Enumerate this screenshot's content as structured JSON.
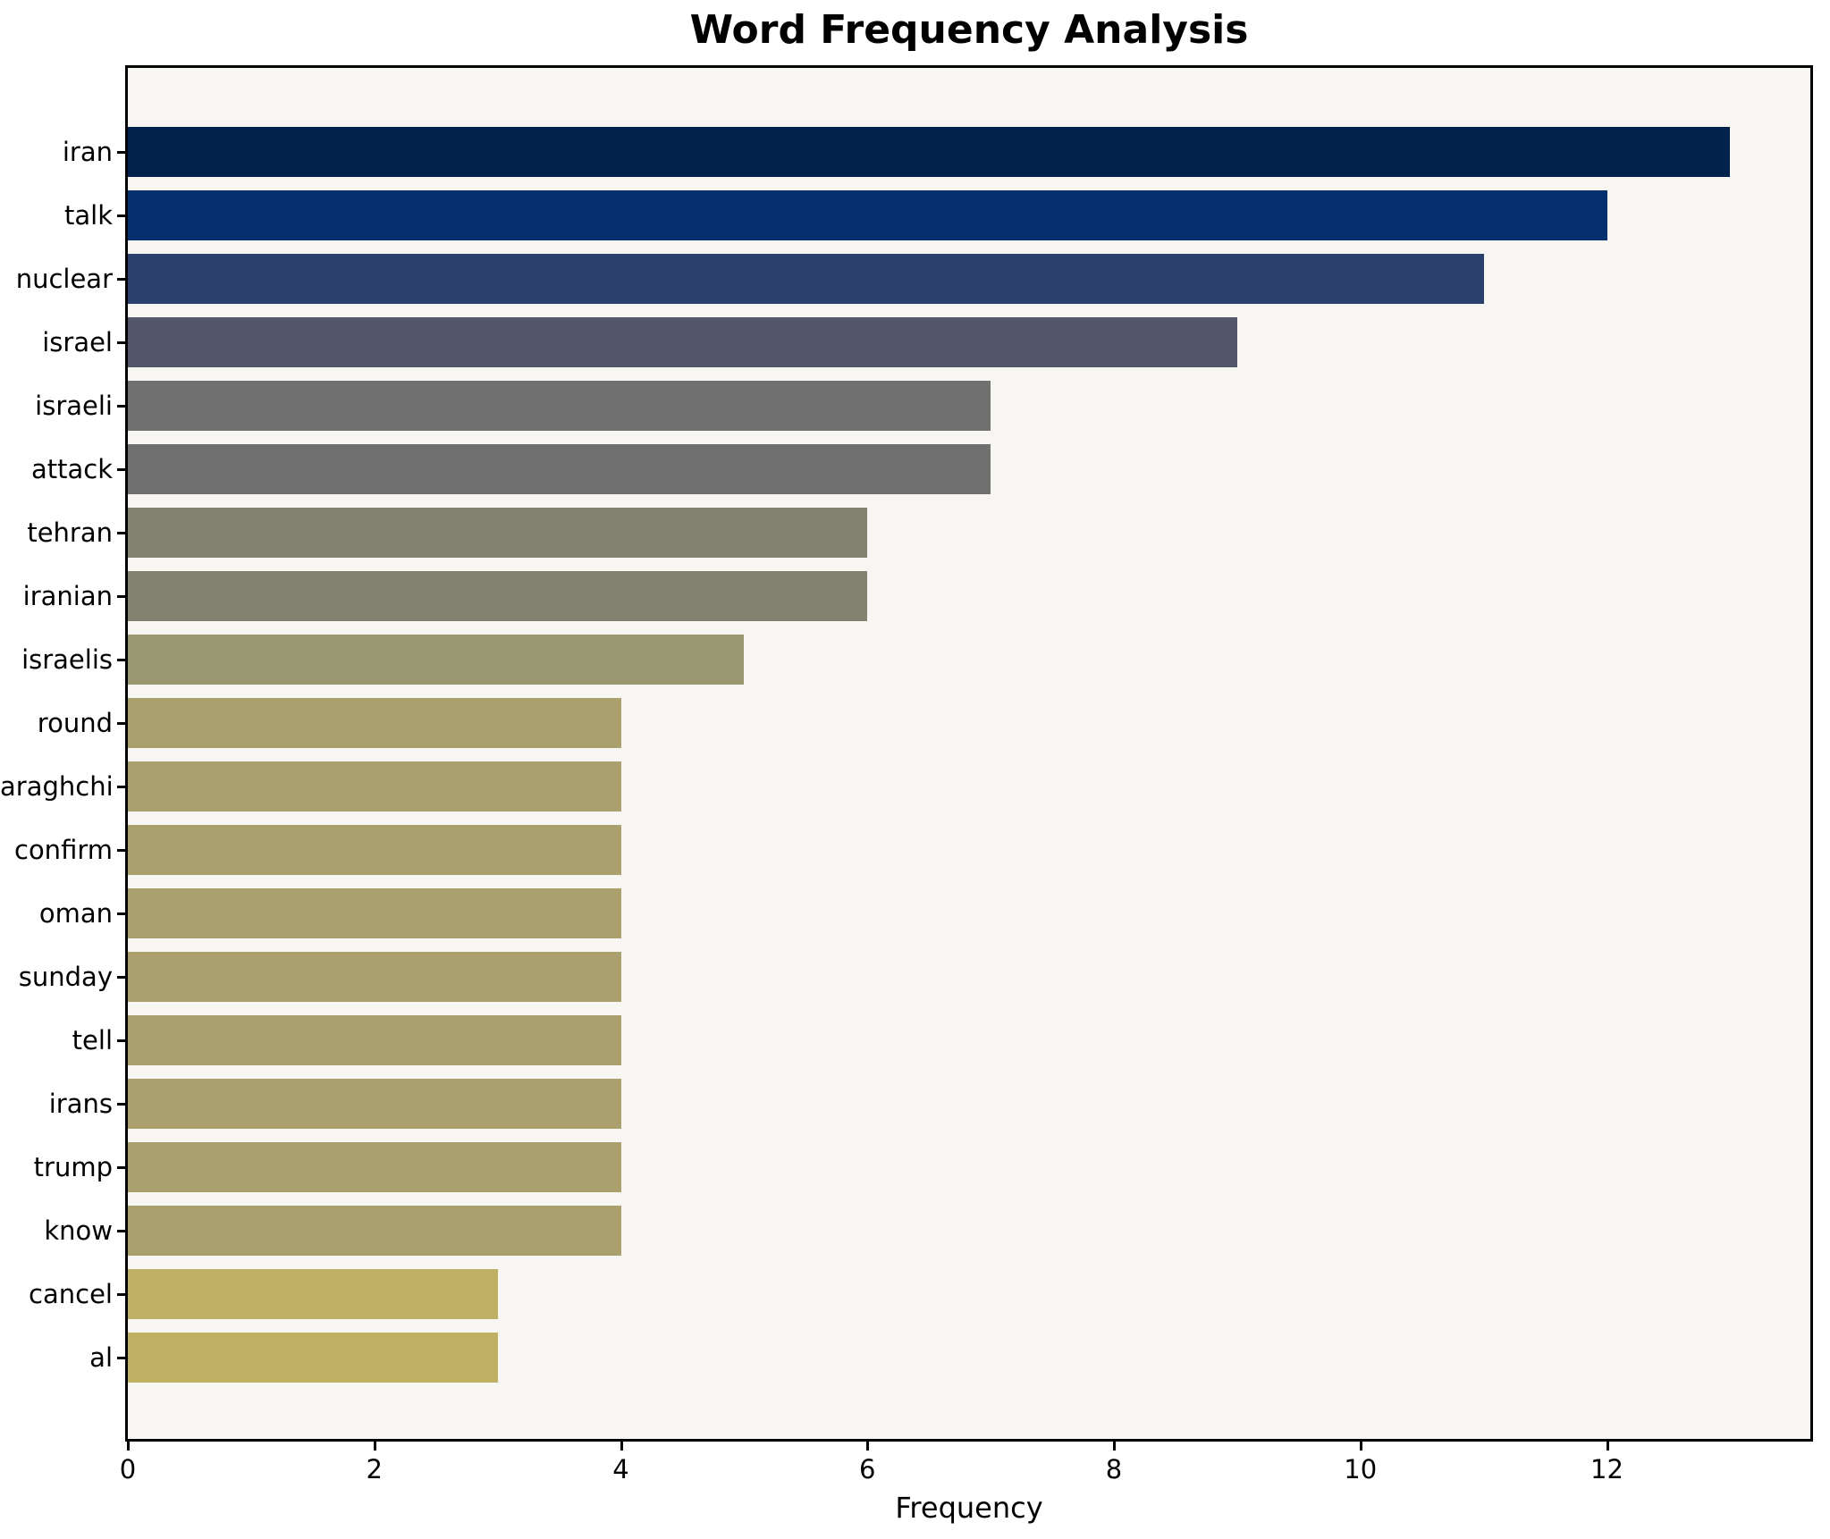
{
  "title": "Word Frequency Analysis",
  "x_axis": {
    "label": "Frequency",
    "ticks": [
      "0",
      "2",
      "4",
      "6",
      "8",
      "10",
      "12"
    ]
  },
  "chart_data": {
    "type": "bar",
    "orientation": "horizontal",
    "title": "Word Frequency Analysis",
    "xlabel": "Frequency",
    "ylabel": "",
    "categories": [
      "iran",
      "talk",
      "nuclear",
      "israel",
      "israeli",
      "attack",
      "tehran",
      "iranian",
      "israelis",
      "round",
      "araghchi",
      "confirm",
      "oman",
      "sunday",
      "tell",
      "irans",
      "trump",
      "know",
      "cancel",
      "al"
    ],
    "values": [
      13,
      12,
      11,
      9,
      7,
      7,
      6,
      6,
      5,
      4,
      4,
      4,
      4,
      4,
      4,
      4,
      4,
      4,
      3,
      3
    ],
    "bar_colors": [
      "#01224d",
      "#04316e",
      "#2b406c",
      "#525769",
      "#707071",
      "#707071",
      "#838271",
      "#838271",
      "#989770",
      "#a9a06d",
      "#a9a06d",
      "#a9a06d",
      "#a9a06d",
      "#a9a06d",
      "#a9a06d",
      "#a9a06d",
      "#a9a06d",
      "#a9a06d",
      "#bfb063",
      "#bfb063"
    ],
    "xticks": [
      0,
      2,
      4,
      6,
      8,
      10,
      12
    ],
    "xlim": [
      0,
      13.65
    ],
    "grid": false,
    "legend": null,
    "colormap": "cividis",
    "plot_bg": "#f7f6f3",
    "fig_bg": "#ffffff"
  }
}
